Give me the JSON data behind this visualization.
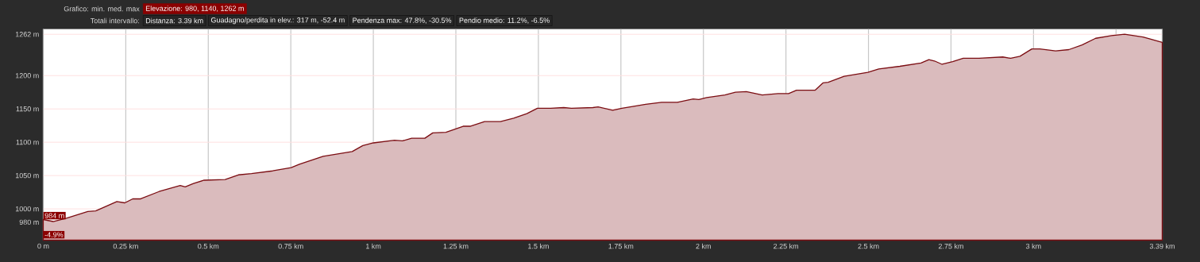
{
  "chart_data": {
    "type": "area",
    "annotations": [
      "Grafico: min. med. max",
      "Elevazione: 980, 1140, 1262 m",
      "Totali intervallo:",
      "Distanza: 3.39 km",
      "Guadagno/perdita in elev.: 317 m, -52.4 m",
      "Pendenza max: 47.8%, -30.5%",
      "Pendio medio: 11.2%, -6.5%",
      {
        "text": "984 m",
        "x": 0,
        "y": 984
      },
      "-4.9%"
    ],
    "x": [
      0,
      0.03,
      0.07,
      0.135,
      0.159,
      0.223,
      0.247,
      0.271,
      0.295,
      0.351,
      0.415,
      0.43,
      0.455,
      0.487,
      0.551,
      0.591,
      0.631,
      0.695,
      0.751,
      0.776,
      0.848,
      0.936,
      0.968,
      1.0,
      1.064,
      1.088,
      1.116,
      1.156,
      1.18,
      1.22,
      1.272,
      1.293,
      1.337,
      1.385,
      1.425,
      1.465,
      1.497,
      1.537,
      1.577,
      1.6,
      1.665,
      1.681,
      1.725,
      1.753,
      1.825,
      1.873,
      1.921,
      1.969,
      1.986,
      2.01,
      2.065,
      2.097,
      2.13,
      2.178,
      2.226,
      2.258,
      2.282,
      2.322,
      2.338,
      2.362,
      2.378,
      2.426,
      2.498,
      2.531,
      2.595,
      2.659,
      2.683,
      2.7,
      2.723,
      2.755,
      2.787,
      2.835,
      2.907,
      2.931,
      2.959,
      2.995,
      3.019,
      3.067,
      3.107,
      3.147,
      3.188,
      3.236,
      3.276,
      3.332,
      3.39
    ],
    "series": [
      {
        "color": "#7b0d12",
        "values": [
          984,
          981,
          986,
          996,
          997,
          1011,
          1009,
          1015,
          1015,
          1026,
          1035,
          1033,
          1038,
          1043,
          1044,
          1051,
          1053,
          1057,
          1062,
          1067,
          1079,
          1086,
          1095,
          1099,
          1103,
          1102,
          1106,
          1106,
          1114,
          1115,
          1124,
          1124,
          1131,
          1131,
          1136,
          1143,
          1151,
          1151,
          1152,
          1151,
          1152,
          1153,
          1148,
          1151,
          1157,
          1160,
          1160,
          1165,
          1164,
          1167,
          1171,
          1175,
          1176,
          1171,
          1173,
          1173,
          1178,
          1178,
          1178,
          1189,
          1190,
          1199,
          1205,
          1210,
          1214,
          1219,
          1224,
          1222,
          1217,
          1221,
          1226,
          1226,
          1228,
          1226,
          1229,
          1240,
          1240,
          1237,
          1239,
          1246,
          1256,
          1260,
          1262,
          1258,
          1250
        ]
      }
    ],
    "xlim": [
      0,
      3.39
    ],
    "ylim": [
      953,
      1270
    ],
    "xticks": [
      {
        "value": 0,
        "label": "0 m"
      },
      {
        "value": 0.25,
        "label": "0.25 km"
      },
      {
        "value": 0.5,
        "label": "0.5 km"
      },
      {
        "value": 0.75,
        "label": "0.75 km"
      },
      {
        "value": 1,
        "label": "1 km"
      },
      {
        "value": 1.25,
        "label": "1.25 km"
      },
      {
        "value": 1.5,
        "label": "1.5 km"
      },
      {
        "value": 1.75,
        "label": "1.75 km"
      },
      {
        "value": 2,
        "label": "2 km"
      },
      {
        "value": 2.25,
        "label": "2.25 km"
      },
      {
        "value": 2.5,
        "label": "2.5 km"
      },
      {
        "value": 2.75,
        "label": "2.75 km"
      },
      {
        "value": 3,
        "label": "3 km"
      },
      {
        "value": 3.25,
        "label": null
      },
      {
        "value": 3.39,
        "label": "3.39 km"
      }
    ],
    "yticks": [
      {
        "value": 980,
        "label": "980 m"
      },
      {
        "value": 1000,
        "label": "1000 m"
      },
      {
        "value": 1050,
        "label": "1050 m"
      },
      {
        "value": 1100,
        "label": "1100 m"
      },
      {
        "value": 1150,
        "label": "1150 m"
      },
      {
        "value": 1200,
        "label": "1200 m"
      },
      {
        "value": 1262,
        "label": "1262 m"
      }
    ],
    "grid": true,
    "marker": "none",
    "line_style": "solid"
  }
}
